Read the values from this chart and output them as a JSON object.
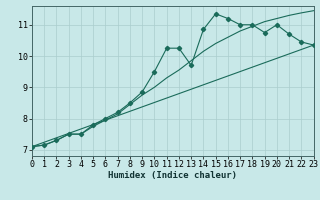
{
  "xlabel": "Humidex (Indice chaleur)",
  "ylabel": "",
  "bg_color": "#c8e8e8",
  "grid_color": "#aacece",
  "line_color": "#1a6b5a",
  "marker_color": "#1a6b5a",
  "xlim": [
    0,
    23
  ],
  "ylim": [
    6.8,
    11.6
  ],
  "xticks": [
    0,
    1,
    2,
    3,
    4,
    5,
    6,
    7,
    8,
    9,
    10,
    11,
    12,
    13,
    14,
    15,
    16,
    17,
    18,
    19,
    20,
    21,
    22,
    23
  ],
  "yticks": [
    7,
    8,
    9,
    10,
    11
  ],
  "line1_x": [
    0,
    1,
    2,
    3,
    4,
    5,
    6,
    7,
    8,
    9,
    10,
    11,
    12,
    13,
    14,
    15,
    16,
    17,
    18,
    19,
    20,
    21,
    22,
    23
  ],
  "line1_y": [
    7.1,
    7.15,
    7.3,
    7.5,
    7.5,
    7.8,
    8.0,
    8.2,
    8.5,
    8.85,
    9.5,
    10.25,
    10.25,
    9.7,
    10.85,
    11.35,
    11.2,
    11.0,
    11.0,
    10.75,
    11.0,
    10.7,
    10.45,
    10.35
  ],
  "line2_x": [
    0,
    23
  ],
  "line2_y": [
    7.1,
    10.35
  ],
  "line3_x": [
    0,
    1,
    2,
    3,
    4,
    5,
    6,
    7,
    8,
    9,
    10,
    11,
    12,
    13,
    14,
    15,
    16,
    17,
    18,
    19,
    20,
    21,
    22,
    23
  ],
  "line3_y": [
    7.1,
    7.15,
    7.3,
    7.5,
    7.5,
    7.75,
    7.95,
    8.15,
    8.45,
    8.75,
    9.0,
    9.3,
    9.55,
    9.85,
    10.15,
    10.4,
    10.6,
    10.8,
    10.95,
    11.1,
    11.2,
    11.3,
    11.38,
    11.45
  ],
  "xlabel_fontsize": 6.5,
  "tick_fontsize": 6.0
}
